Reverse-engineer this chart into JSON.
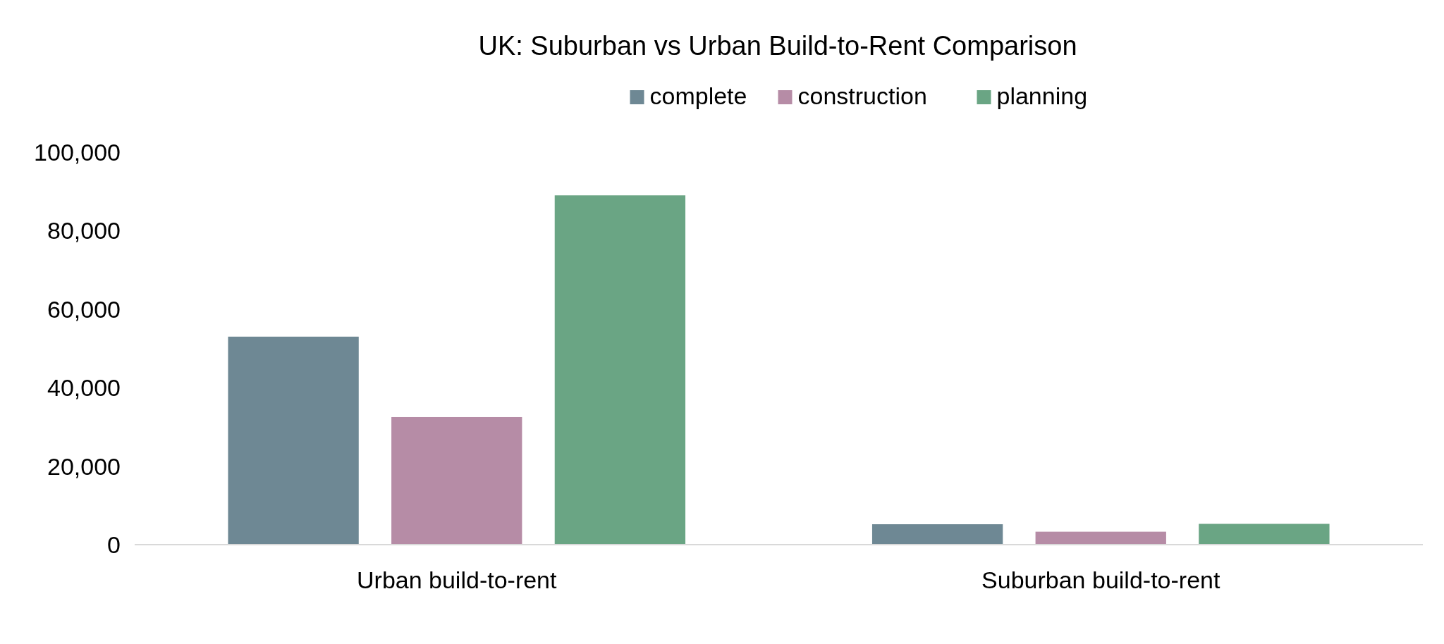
{
  "chart_data": {
    "type": "bar",
    "title": "UK: Suburban vs Urban Build-to-Rent Comparison",
    "categories": [
      "Urban build-to-rent",
      "Suburban build-to-rent"
    ],
    "series": [
      {
        "name": "complete",
        "color": "#6e8894",
        "values": [
          53000,
          5200
        ]
      },
      {
        "name": "construction",
        "color": "#b68ca6",
        "values": [
          32500,
          3300
        ]
      },
      {
        "name": "planning",
        "color": "#6aa584",
        "values": [
          89000,
          5300
        ]
      }
    ],
    "ylim": [
      0,
      100000
    ],
    "yticks": [
      0,
      {
        "value": 20000,
        "label": "20,000"
      },
      {
        "value": 40000,
        "label": "40,000"
      },
      {
        "value": 60000,
        "label": "60,000"
      },
      {
        "value": 80000,
        "label": "80,000"
      },
      {
        "value": 100000,
        "label": "100,000"
      }
    ],
    "grid": false,
    "legend": "top"
  }
}
